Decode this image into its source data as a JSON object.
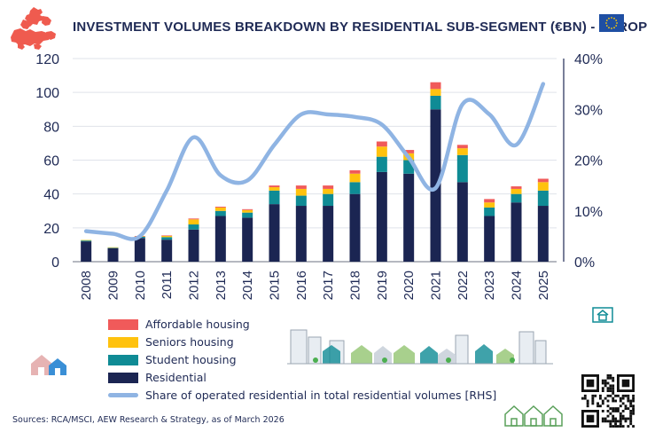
{
  "header": {
    "title": "INVESTMENT VOLUMES BREAKDOWN BY RESIDENTIAL SUB-SEGMENT (€BN) - EUROPE"
  },
  "footer": {
    "source": "Sources: RCA/MSCI, AEW Research & Strategy, as of March 2026"
  },
  "icons": [
    "europe-map-icon",
    "eu-flag-icon",
    "house-icon",
    "city-skyline-icon",
    "houses-icon",
    "green-houses-icon",
    "qr-code-icon"
  ],
  "colors": {
    "residential": "#1b2552",
    "student": "#0f8b95",
    "seniors": "#ffc20e",
    "affordable": "#f05a5a",
    "share_line": "#8fb4e3",
    "axis_text": "#1f2a55"
  },
  "chart_data": {
    "type": "bar",
    "stacked": true,
    "title": "INVESTMENT VOLUMES BREAKDOWN BY RESIDENTIAL SUB-SEGMENT (€BN) - EUROPE",
    "categories": [
      "2008",
      "2009",
      "2010",
      "2011",
      "2012",
      "2013",
      "2014",
      "2015",
      "2016",
      "2017",
      "2018",
      "2019",
      "2020",
      "2021",
      "2022",
      "2023",
      "2024",
      "2025"
    ],
    "ylim": [
      0,
      120
    ],
    "yticks": [
      "0",
      "20",
      "40",
      "60",
      "80",
      "100",
      "120"
    ],
    "y2lim": [
      0,
      40
    ],
    "y2ticks": [
      "0%",
      "10%",
      "20%",
      "30%",
      "40%"
    ],
    "legend_position": "bottom-left",
    "grid": true,
    "series": [
      {
        "name": "Residential",
        "values": [
          12,
          8,
          14,
          13,
          19,
          27,
          26,
          34,
          33,
          33,
          40,
          53,
          52,
          90,
          47,
          27,
          35,
          33
        ]
      },
      {
        "name": "Student housing",
        "values": [
          0.5,
          0.3,
          0.7,
          1.5,
          3,
          3,
          3,
          8,
          6,
          7,
          7,
          9,
          8,
          8,
          16,
          5,
          5,
          9
        ]
      },
      {
        "name": "Seniors housing",
        "values": [
          0.3,
          0.2,
          0.3,
          0.7,
          3,
          2,
          1.5,
          2,
          4,
          3,
          5,
          6,
          4,
          4,
          4,
          3,
          3,
          5
        ]
      },
      {
        "name": "Affordable housing",
        "values": [
          0,
          0,
          0.2,
          0.3,
          0.5,
          0.5,
          0.5,
          1,
          2,
          2,
          2,
          3,
          2,
          4,
          2,
          2,
          1.5,
          2
        ]
      }
    ],
    "line": {
      "name": "Share of operated residential in total residential volumes [RHS]",
      "axis": "right",
      "values": [
        6,
        5.5,
        5,
        14,
        24.5,
        17,
        16,
        23,
        29,
        29,
        28.5,
        27,
        20.5,
        14.5,
        31,
        29,
        23,
        35
      ]
    }
  }
}
